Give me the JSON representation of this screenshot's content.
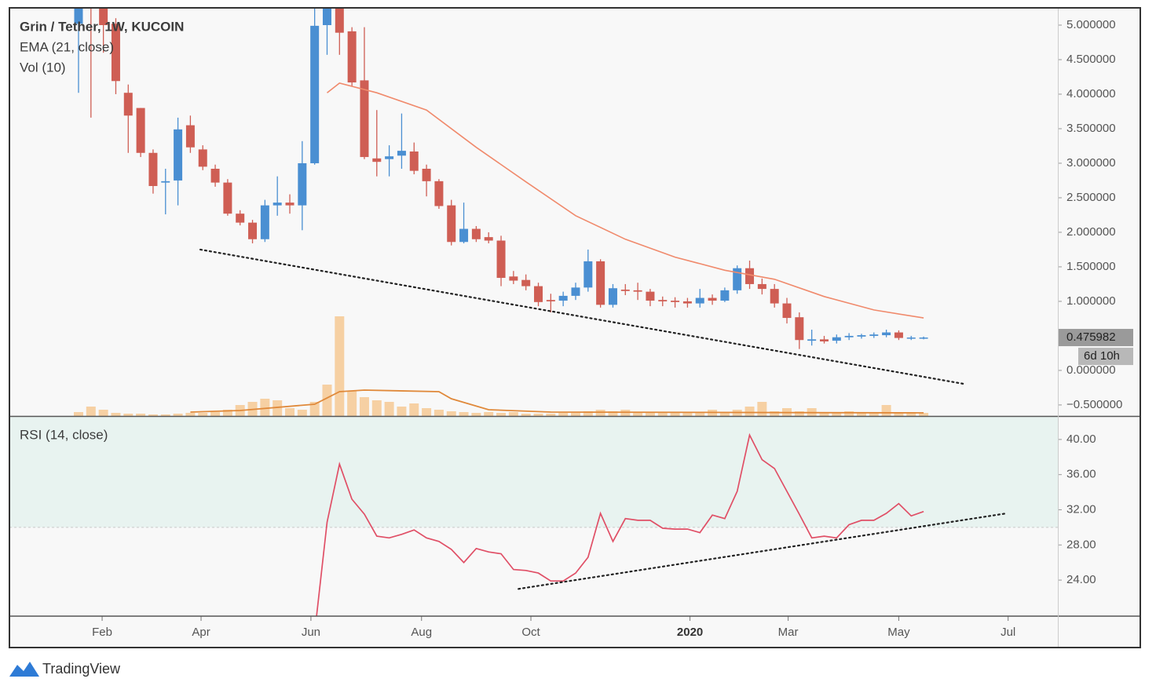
{
  "brand": "TradingView",
  "chart_data": [
    {
      "type": "candlestick",
      "title": "Grin / Tether, 1W, KUCOIN",
      "x": [
        0,
        1,
        2,
        3,
        4,
        5,
        6,
        7,
        8,
        9,
        10,
        11,
        12,
        13,
        14,
        15,
        16,
        17,
        18,
        19,
        20,
        21,
        22,
        23,
        24,
        25,
        26,
        27,
        28,
        29,
        30,
        31,
        32,
        33,
        34,
        35,
        36,
        37,
        38,
        39,
        40,
        41,
        42,
        43,
        44,
        45,
        46,
        47,
        48,
        49,
        50,
        51,
        52,
        53,
        54,
        55,
        56,
        57,
        58,
        59,
        60,
        61,
        62,
        63,
        64,
        65,
        66,
        67,
        68
      ],
      "open": [
        5.02,
        5.8,
        5.5,
        5.02,
        4.02,
        3.8,
        3.15,
        2.72,
        2.75,
        3.55,
        3.2,
        2.92,
        2.72,
        2.27,
        2.14,
        1.9,
        2.39,
        2.43,
        2.39,
        3.0,
        5.0,
        5.35,
        4.91,
        4.2,
        3.07,
        3.06,
        3.11,
        3.17,
        2.92,
        2.74,
        2.39,
        1.86,
        2.05,
        1.93,
        1.88,
        1.36,
        1.31,
        1.22,
        1.02,
        1.01,
        1.08,
        1.2,
        1.58,
        0.95,
        1.17,
        1.16,
        1.14,
        1.02,
        1.01,
        1.0,
        0.97,
        1.05,
        1.01,
        1.16,
        1.48,
        1.25,
        1.18,
        0.97,
        0.77,
        0.43,
        0.45,
        0.43,
        0.48,
        0.49,
        0.5,
        0.51,
        0.55,
        0.466,
        0.47
      ],
      "high": [
        6.0,
        6.2,
        5.7,
        5.1,
        4.14,
        3.8,
        3.2,
        2.92,
        3.66,
        3.69,
        3.26,
        2.98,
        2.77,
        2.32,
        2.18,
        2.47,
        2.81,
        2.55,
        3.32,
        5.4,
        5.8,
        5.6,
        4.97,
        4.97,
        3.77,
        3.26,
        3.72,
        3.3,
        2.98,
        2.77,
        2.47,
        2.43,
        2.09,
        2.0,
        1.95,
        1.44,
        1.39,
        1.27,
        1.11,
        1.14,
        1.27,
        1.75,
        1.61,
        1.25,
        1.25,
        1.27,
        1.18,
        1.07,
        1.06,
        1.05,
        1.18,
        1.1,
        1.2,
        1.52,
        1.59,
        1.33,
        1.25,
        1.05,
        0.84,
        0.59,
        0.5,
        0.52,
        0.54,
        0.53,
        0.55,
        0.59,
        0.58,
        0.5,
        0.49
      ],
      "low": [
        4.02,
        3.66,
        4.6,
        4.0,
        3.15,
        3.09,
        2.56,
        2.26,
        2.39,
        3.15,
        2.9,
        2.66,
        2.24,
        2.1,
        1.84,
        1.86,
        2.24,
        2.27,
        2.03,
        2.98,
        4.57,
        4.57,
        4.11,
        3.06,
        2.81,
        2.81,
        2.92,
        2.84,
        2.52,
        2.34,
        1.81,
        1.84,
        1.86,
        1.84,
        1.22,
        1.25,
        1.16,
        0.93,
        0.84,
        0.93,
        1.02,
        1.14,
        0.91,
        0.91,
        1.09,
        1.02,
        0.93,
        0.93,
        0.91,
        0.91,
        0.91,
        0.95,
        0.99,
        1.11,
        1.18,
        1.1,
        0.91,
        0.68,
        0.31,
        0.36,
        0.39,
        0.39,
        0.44,
        0.46,
        0.47,
        0.48,
        0.44,
        0.44,
        0.45
      ],
      "close": [
        5.6,
        5.4,
        5.0,
        4.19,
        3.69,
        3.15,
        2.67,
        2.74,
        3.49,
        3.23,
        2.95,
        2.72,
        2.27,
        2.14,
        1.9,
        2.39,
        2.43,
        2.39,
        3.0,
        4.99,
        5.4,
        4.89,
        4.17,
        3.09,
        3.02,
        3.1,
        3.18,
        2.89,
        2.74,
        2.38,
        1.86,
        2.05,
        1.9,
        1.88,
        1.34,
        1.3,
        1.22,
        0.99,
        1.0,
        1.08,
        1.2,
        1.58,
        0.95,
        1.19,
        1.15,
        1.14,
        1.01,
        1.0,
        0.99,
        0.97,
        1.05,
        1.01,
        1.16,
        1.48,
        1.25,
        1.18,
        0.97,
        0.76,
        0.44,
        0.45,
        0.42,
        0.48,
        0.5,
        0.51,
        0.52,
        0.55,
        0.47,
        0.476,
        0.475982
      ],
      "up_color": "#4a8fd2",
      "down_color": "#cf5e54",
      "ema": {
        "name": "EMA (21, close)",
        "color": "#f08a6c",
        "x": [
          20,
          21,
          24,
          28,
          32,
          36,
          40,
          44,
          48,
          52,
          56,
          60,
          64,
          68
        ],
        "values": [
          4.02,
          4.16,
          4.02,
          3.77,
          3.23,
          2.73,
          2.24,
          1.9,
          1.64,
          1.45,
          1.32,
          1.07,
          0.875,
          0.76
        ]
      },
      "volume": {
        "name": "Vol (10)",
        "color": "#f5b56a",
        "ylim": [
          0,
          130
        ],
        "values": [
          5,
          12,
          8,
          4,
          3,
          3,
          2,
          2,
          3,
          4,
          4,
          5,
          8,
          14,
          18,
          22,
          20,
          10,
          8,
          18,
          40,
          127,
          32,
          24,
          20,
          18,
          12,
          16,
          10,
          8,
          6,
          5,
          4,
          5,
          4,
          5,
          3,
          3,
          3,
          4,
          4,
          6,
          8,
          6,
          8,
          4,
          4,
          5,
          4,
          5,
          5,
          8,
          5,
          8,
          12,
          18,
          6,
          10,
          6,
          10,
          4,
          5,
          6,
          5,
          4,
          14,
          4,
          5,
          4
        ],
        "ma_color": "#e0893a",
        "ma_x": [
          9,
          13,
          19,
          21,
          23,
          29,
          30,
          33,
          38,
          68
        ],
        "ma_values": [
          5,
          7,
          15,
          31,
          33,
          31,
          22,
          8,
          5,
          4
        ]
      },
      "trendline": {
        "x": [
          9.8,
          71.4
        ],
        "values": [
          1.75,
          -0.2
        ],
        "color": "#222222"
      },
      "last_price": 0.475982,
      "countdown": "6d 10h",
      "xlim": [
        -5.56,
        78.8
      ],
      "ylim": [
        -0.66,
        5.25
      ],
      "yticks": [
        {
          "value": 5,
          "label": "5.000000"
        },
        {
          "value": 4.5,
          "label": "4.500000"
        },
        {
          "value": 4,
          "label": "4.000000"
        },
        {
          "value": 3.5,
          "label": "3.500000"
        },
        {
          "value": 3,
          "label": "3.000000"
        },
        {
          "value": 2.5,
          "label": "2.500000"
        },
        {
          "value": 2,
          "label": "2.000000"
        },
        {
          "value": 1.5,
          "label": "1.500000"
        },
        {
          "value": 1,
          "label": "1.000000"
        },
        {
          "value": 0,
          "label": "0.000000"
        },
        {
          "value": -0.5,
          "label": "−0.500000"
        }
      ]
    },
    {
      "type": "line",
      "title": "RSI (14, close)",
      "x": [
        19,
        20,
        21,
        22,
        23,
        24,
        25,
        26,
        27,
        28,
        29,
        30,
        31,
        32,
        33,
        34,
        35,
        36,
        37,
        38,
        39,
        40,
        41,
        42,
        43,
        44,
        45,
        46,
        47,
        48,
        49,
        50,
        51,
        52,
        53,
        54,
        55,
        56,
        57,
        58,
        59,
        60,
        61,
        62,
        63,
        64,
        65,
        66,
        67,
        68
      ],
      "values": [
        18,
        30.6,
        37.2,
        33.2,
        31.5,
        29.0,
        28.8,
        29.2,
        29.7,
        28.8,
        28.4,
        27.5,
        26.0,
        27.6,
        27.2,
        27.0,
        25.2,
        25.1,
        24.8,
        23.9,
        23.9,
        24.8,
        26.6,
        31.6,
        28.4,
        31.0,
        30.8,
        30.8,
        29.9,
        29.8,
        29.8,
        29.4,
        31.4,
        31.0,
        34.1,
        40.5,
        37.7,
        36.7,
        34.1,
        31.5,
        28.8,
        29.0,
        28.8,
        30.3,
        30.8,
        30.8,
        31.6,
        32.7,
        31.3,
        31.8
      ],
      "color": "#e04f66",
      "band": [
        30,
        70
      ],
      "band_color": "#e8f3f0",
      "trendline": {
        "x": [
          35.4,
          74.7
        ],
        "values": [
          23.0,
          31.6
        ],
        "color": "#222222"
      },
      "xlim": [
        -5.56,
        78.8
      ],
      "ylim": [
        19.9,
        42.58
      ],
      "yticks": [
        {
          "value": 40,
          "label": "40.00"
        },
        {
          "value": 36,
          "label": "36.00"
        },
        {
          "value": 32,
          "label": "32.00"
        },
        {
          "value": 28,
          "label": "28.00"
        },
        {
          "value": 24,
          "label": "24.00"
        }
      ],
      "xticks": [
        {
          "value": 1.9,
          "label": "Feb"
        },
        {
          "value": 9.86,
          "label": "Apr"
        },
        {
          "value": 18.7,
          "label": "Jun"
        },
        {
          "value": 27.6,
          "label": "Aug"
        },
        {
          "value": 36.4,
          "label": "Oct"
        },
        {
          "value": 49.2,
          "label": "2020",
          "bold": true
        },
        {
          "value": 57.1,
          "label": "Mar"
        },
        {
          "value": 66.0,
          "label": "May"
        },
        {
          "value": 74.8,
          "label": "Jul"
        }
      ]
    }
  ]
}
